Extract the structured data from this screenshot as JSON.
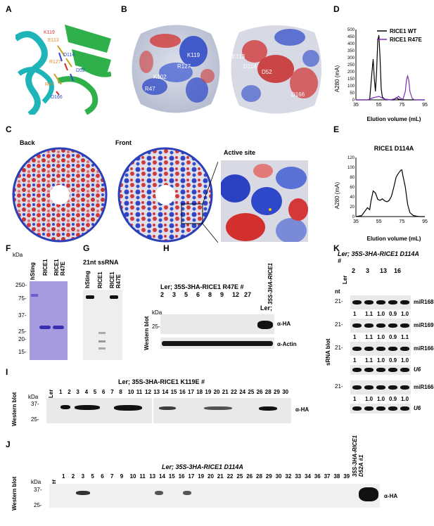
{
  "panels": {
    "A": "A",
    "B": "B",
    "C": "C",
    "D": "D",
    "E": "E",
    "F": "F",
    "G": "G",
    "H": "H",
    "I": "I",
    "J": "J",
    "K": "K"
  },
  "panelA": {
    "residues": [
      "K119",
      "E113",
      "D114",
      "R127",
      "D52",
      "R47",
      "D166"
    ]
  },
  "panelB": {
    "left": [
      "K119",
      "R127",
      "K102",
      "R47"
    ],
    "right": [
      "E113",
      "D114",
      "D52",
      "D166"
    ]
  },
  "panelC": {
    "back": "Back",
    "front": "Front",
    "active": "Active site"
  },
  "chartD": {
    "ylabel": "A280 (mA)",
    "xlabel": "Elution volume (mL)",
    "legend": [
      "RICE1 WT",
      "RICE1 R47E"
    ]
  },
  "chartE": {
    "title": "RICE1 D114A",
    "ylabel": "A280 (mA)",
    "xlabel": "Elution volume (mL)"
  },
  "chart_data": [
    {
      "type": "line",
      "title": "",
      "xlabel": "Elution volume (mL)",
      "ylabel": "A280 (mA)",
      "xlim": [
        35,
        95
      ],
      "ylim": [
        0,
        500
      ],
      "xticks": [
        35,
        55,
        75,
        95
      ],
      "yticks": [
        0,
        50,
        100,
        150,
        200,
        250,
        300,
        350,
        400,
        450,
        500
      ],
      "series": [
        {
          "name": "RICE1 WT",
          "color": "#000000",
          "x": [
            35,
            45,
            47,
            49,
            50,
            51,
            52,
            53,
            54,
            55,
            56,
            57,
            58,
            60,
            65,
            68,
            70,
            72,
            75,
            80,
            85,
            90,
            95
          ],
          "y": [
            0,
            0,
            5,
            200,
            290,
            150,
            60,
            200,
            420,
            460,
            300,
            80,
            20,
            5,
            0,
            0,
            15,
            5,
            0,
            0,
            0,
            0,
            0
          ]
        },
        {
          "name": "RICE1 R47E",
          "color": "#7b2fbe",
          "x": [
            35,
            45,
            50,
            55,
            60,
            65,
            70,
            72,
            74,
            76,
            78,
            79,
            80,
            81,
            82,
            84,
            86,
            90,
            95
          ],
          "y": [
            0,
            0,
            15,
            25,
            5,
            0,
            10,
            25,
            10,
            5,
            60,
            140,
            170,
            140,
            60,
            10,
            0,
            0,
            0
          ]
        }
      ]
    },
    {
      "type": "line",
      "title": "RICE1 D114A",
      "xlabel": "Elution volume (mL)",
      "ylabel": "A280 (mA)",
      "xlim": [
        35,
        95
      ],
      "ylim": [
        0,
        120
      ],
      "xticks": [
        35,
        55,
        75,
        95
      ],
      "yticks": [
        0,
        20,
        40,
        60,
        80,
        100,
        120
      ],
      "series": [
        {
          "name": "",
          "color": "#000000",
          "x": [
            35,
            40,
            45,
            47,
            48,
            50,
            52,
            54,
            56,
            58,
            60,
            62,
            64,
            66,
            68,
            70,
            72,
            74,
            75,
            76,
            78,
            80,
            82,
            85,
            90,
            95
          ],
          "y": [
            0,
            2,
            18,
            14,
            30,
            52,
            48,
            35,
            33,
            36,
            32,
            30,
            33,
            42,
            60,
            80,
            88,
            94,
            95,
            82,
            60,
            25,
            8,
            2,
            0,
            0
          ]
        }
      ]
    }
  ],
  "panelF": {
    "kda": "kDa",
    "lanes": [
      "hSting",
      "RICE1",
      "RICE1 R47E"
    ],
    "markers": [
      "250-",
      "75-",
      "37-",
      "25-",
      "20-",
      "15-"
    ]
  },
  "panelG": {
    "title": "21nt ssRNA",
    "lanes": [
      "hSting",
      "RICE1",
      "RICE1 R47E"
    ]
  },
  "panelH": {
    "header": "Ler; 35S-3HA-RICE1 R47E #",
    "lanes": [
      "2",
      "3",
      "5",
      "6",
      "8",
      "9",
      "12",
      "27"
    ],
    "ler": "Ler;",
    "ctrl": "35S-3HA-RICE1",
    "kda": "kDa",
    "marker": "25-",
    "ha": "α-HA",
    "actin": "α-Actin",
    "side": "Western blot"
  },
  "panelI": {
    "header": "Ler; 35S-3HA-RICE1 K119E #",
    "ler": "Ler",
    "lanes": [
      "1",
      "2",
      "3",
      "4",
      "5",
      "6",
      "7",
      "8",
      "10",
      "11",
      "12",
      "13",
      "14",
      "15",
      "16",
      "17",
      "18",
      "19",
      "20",
      "21",
      "22",
      "24",
      "25",
      "26",
      "28",
      "29",
      "30"
    ],
    "kda": "kDa",
    "markers": [
      "37-",
      "25-"
    ],
    "ha": "α-HA",
    "side": "Western blot"
  },
  "panelJ": {
    "header": "Ler; 35S-3HA-RICE1 D114A",
    "ler": "Ler",
    "lanes": [
      "1",
      "2",
      "3",
      "5",
      "6",
      "7",
      "9",
      "10",
      "11",
      "13",
      "14",
      "15",
      "16",
      "17",
      "19",
      "20",
      "21",
      "22",
      "25",
      "26",
      "28",
      "29",
      "30",
      "32",
      "33",
      "34",
      "36",
      "37",
      "38",
      "39"
    ],
    "ctrl": "35S-3HA-RICE1 D52A #1",
    "kda": "kDa",
    "markers": [
      "37-",
      "25-"
    ],
    "ha": "α-HA",
    "side": "Western blot"
  },
  "panelK": {
    "header": "Ler; 35S-3HA-RICE1 D114A #",
    "ler": "Ler",
    "lanes": [
      "2",
      "3",
      "13",
      "16"
    ],
    "nt": "nt",
    "side": "sRNA blot",
    "rows": [
      {
        "name": "miR168",
        "marker": "21-",
        "values": [
          "1",
          "1.1",
          "1.0",
          "0.9",
          "1.0"
        ]
      },
      {
        "name": "miR169",
        "marker": "21-",
        "values": [
          "1",
          "1.1",
          "1.0",
          "0.9",
          "1.1"
        ]
      },
      {
        "name": "miR166",
        "marker": "21-",
        "values": [
          "1",
          "1.1",
          "1.0",
          "0.9",
          "1.0"
        ]
      },
      {
        "name": "U6",
        "marker": "",
        "values": []
      },
      {
        "name": "miR166",
        "marker": "21-",
        "values": [
          "1",
          "1.0",
          "1.0",
          "0.9",
          "1.0"
        ]
      },
      {
        "name": "U6",
        "marker": "",
        "values": []
      }
    ]
  }
}
